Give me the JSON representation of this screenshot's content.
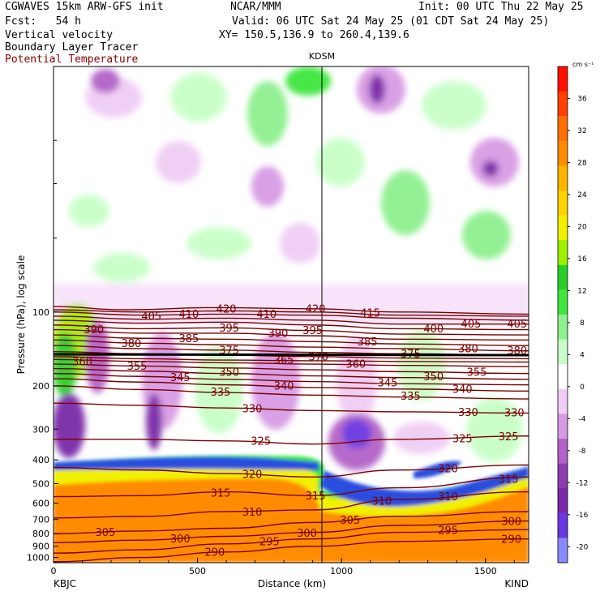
{
  "header": {
    "model": "CGWAVES 15km ARW-GFS init",
    "forecast": "Fcst:   54 h",
    "field1": "Vertical velocity",
    "field2": "Boundary Layer Tracer",
    "field3": "Potential Temperature",
    "center": "NCAR/MMM",
    "init": "Init: 00 UTC Thu 22 May 25",
    "valid": "Valid: 06 UTC Sat 24 May 25 (01 CDT Sat 24 May 25)",
    "xy": "XY= 150.5,136.9 to 260.4,139.6"
  },
  "colors": {
    "theta": "#7a0000",
    "shading_scale": [
      "#8a8aff",
      "#6a38e0",
      "#7a2aa8",
      "#8c3db0",
      "#b262c8",
      "#d79be4",
      "#f0cdf5",
      "#ffffff",
      "#c8ffc8",
      "#8ef08e",
      "#3ee63e",
      "#2ad02a",
      "#9cf000",
      "#f0f000",
      "#ffd200",
      "#ffb400",
      "#ff8c00",
      "#ff7000",
      "#ff4000",
      "#ff1000"
    ]
  },
  "chart_data": {
    "type": "heatmap",
    "title": "Vertical velocity, Boundary Layer Tracer, Potential Temperature",
    "xlabel": "Distance (km)",
    "ylabel": "Pressure (hPa), log scale",
    "x_ticks": [
      0,
      500,
      1000,
      1500
    ],
    "xlim": [
      0,
      1650
    ],
    "y_ticks": [
      100,
      200,
      300,
      400,
      500,
      600,
      700,
      800,
      900,
      1000
    ],
    "y_scale": "log",
    "ylim": [
      1050,
      10
    ],
    "x_endpoints": {
      "left": "KBJC",
      "right": "KIND"
    },
    "marker": {
      "label": "KDSM",
      "x": 940
    },
    "colorbar": {
      "unit": "cm s⁻¹",
      "tick_labels": [
        "36",
        "32",
        "28",
        "24",
        "20",
        "16",
        "12",
        "8",
        "4",
        "0",
        "-4",
        "-8",
        "-12",
        "-16",
        "-20"
      ],
      "levels": [
        -22,
        -20,
        -18,
        -16,
        -14,
        -12,
        -10,
        -8,
        -6,
        -4,
        -2,
        0,
        2,
        4,
        6,
        8,
        10,
        12,
        14,
        16,
        18,
        20,
        22,
        24,
        26,
        28,
        30,
        32,
        34,
        36,
        38,
        40
      ]
    },
    "theta_isentropes": [
      {
        "theta": 420,
        "points": [
          [
            0,
            95
          ],
          [
            250,
            98
          ],
          [
            550,
            96
          ],
          [
            900,
            97
          ],
          [
            1200,
            100
          ],
          [
            1650,
            102
          ]
        ]
      },
      {
        "theta": 415,
        "points": [
          [
            0,
            98
          ],
          [
            300,
            100
          ],
          [
            600,
            99
          ],
          [
            900,
            100
          ],
          [
            1200,
            103
          ],
          [
            1650,
            104
          ]
        ]
      },
      {
        "theta": 410,
        "points": [
          [
            0,
            100
          ],
          [
            300,
            103
          ],
          [
            600,
            102
          ],
          [
            900,
            103
          ],
          [
            1200,
            106
          ],
          [
            1650,
            108
          ]
        ]
      },
      {
        "theta": 405,
        "points": [
          [
            0,
            104
          ],
          [
            300,
            107
          ],
          [
            600,
            106
          ],
          [
            900,
            108
          ],
          [
            1200,
            112
          ],
          [
            1650,
            112
          ]
        ]
      },
      {
        "theta": 400,
        "points": [
          [
            0,
            108
          ],
          [
            300,
            111
          ],
          [
            600,
            110
          ],
          [
            900,
            113
          ],
          [
            1200,
            117
          ],
          [
            1650,
            118
          ]
        ]
      },
      {
        "theta": 395,
        "points": [
          [
            0,
            113
          ],
          [
            300,
            117
          ],
          [
            600,
            116
          ],
          [
            900,
            119
          ],
          [
            1200,
            123
          ],
          [
            1650,
            124
          ]
        ]
      },
      {
        "theta": 390,
        "points": [
          [
            0,
            118
          ],
          [
            300,
            122
          ],
          [
            600,
            122
          ],
          [
            900,
            125
          ],
          [
            1200,
            129
          ],
          [
            1650,
            130
          ]
        ]
      },
      {
        "theta": 385,
        "points": [
          [
            0,
            124
          ],
          [
            300,
            128
          ],
          [
            600,
            129
          ],
          [
            900,
            132
          ],
          [
            1200,
            135
          ],
          [
            1650,
            137
          ]
        ]
      },
      {
        "theta": 380,
        "points": [
          [
            0,
            130
          ],
          [
            300,
            134
          ],
          [
            600,
            136
          ],
          [
            900,
            139
          ],
          [
            1200,
            141
          ],
          [
            1650,
            144
          ]
        ]
      },
      {
        "theta": 375,
        "points": [
          [
            0,
            137
          ],
          [
            300,
            141
          ],
          [
            600,
            143
          ],
          [
            900,
            146
          ],
          [
            1200,
            148
          ],
          [
            1650,
            150
          ]
        ]
      },
      {
        "theta": 370,
        "points": [
          [
            0,
            145
          ],
          [
            300,
            148
          ],
          [
            600,
            150
          ],
          [
            900,
            152
          ],
          [
            1200,
            154
          ],
          [
            1650,
            155
          ]
        ]
      },
      {
        "theta": 365,
        "points": [
          [
            0,
            152
          ],
          [
            300,
            155
          ],
          [
            600,
            157
          ],
          [
            900,
            158
          ],
          [
            1200,
            159
          ],
          [
            1650,
            160
          ]
        ]
      },
      {
        "theta": 360,
        "points": [
          [
            0,
            156
          ],
          [
            300,
            159
          ],
          [
            600,
            161
          ],
          [
            900,
            163
          ],
          [
            1200,
            165
          ],
          [
            1650,
            167
          ]
        ]
      },
      {
        "theta": 355,
        "points": [
          [
            0,
            163
          ],
          [
            300,
            166
          ],
          [
            600,
            169
          ],
          [
            900,
            172
          ],
          [
            1200,
            175
          ],
          [
            1650,
            178
          ]
        ]
      },
      {
        "theta": 350,
        "points": [
          [
            0,
            170
          ],
          [
            300,
            174
          ],
          [
            600,
            178
          ],
          [
            900,
            182
          ],
          [
            1200,
            185
          ],
          [
            1650,
            188
          ]
        ]
      },
      {
        "theta": 345,
        "points": [
          [
            0,
            178
          ],
          [
            300,
            183
          ],
          [
            600,
            188
          ],
          [
            900,
            192
          ],
          [
            1200,
            196
          ],
          [
            1650,
            198
          ]
        ]
      },
      {
        "theta": 340,
        "points": [
          [
            0,
            187
          ],
          [
            300,
            193
          ],
          [
            600,
            198
          ],
          [
            900,
            203
          ],
          [
            1200,
            206
          ],
          [
            1650,
            210
          ]
        ]
      },
      {
        "theta": 335,
        "points": [
          [
            0,
            200
          ],
          [
            300,
            207
          ],
          [
            600,
            213
          ],
          [
            900,
            218
          ],
          [
            1200,
            222
          ],
          [
            1650,
            226
          ]
        ]
      },
      {
        "theta": 330,
        "points": [
          [
            0,
            235
          ],
          [
            300,
            240
          ],
          [
            600,
            246
          ],
          [
            900,
            252
          ],
          [
            1200,
            255
          ],
          [
            1650,
            258
          ]
        ]
      },
      {
        "theta": 325,
        "points": [
          [
            0,
            330
          ],
          [
            300,
            330
          ],
          [
            600,
            335
          ],
          [
            900,
            345
          ],
          [
            1200,
            330
          ],
          [
            1650,
            320
          ]
        ]
      },
      {
        "theta": 320,
        "points": [
          [
            0,
            430
          ],
          [
            300,
            440
          ],
          [
            600,
            455
          ],
          [
            900,
            470
          ],
          [
            1200,
            440
          ],
          [
            1650,
            420
          ]
        ]
      },
      {
        "theta": 315,
        "points": [
          [
            0,
            565
          ],
          [
            300,
            560
          ],
          [
            600,
            540
          ],
          [
            900,
            560
          ],
          [
            1200,
            520
          ],
          [
            1650,
            470
          ]
        ]
      },
      {
        "theta": 310,
        "points": [
          [
            0,
            690
          ],
          [
            300,
            680
          ],
          [
            600,
            650
          ],
          [
            900,
            640
          ],
          [
            1200,
            580
          ],
          [
            1650,
            540
          ]
        ]
      },
      {
        "theta": 305,
        "points": [
          [
            0,
            800
          ],
          [
            300,
            780
          ],
          [
            600,
            760
          ],
          [
            900,
            720
          ],
          [
            1200,
            680
          ],
          [
            1650,
            650
          ]
        ]
      },
      {
        "theta": 300,
        "points": [
          [
            0,
            870
          ],
          [
            300,
            850
          ],
          [
            600,
            820
          ],
          [
            900,
            790
          ],
          [
            1200,
            740
          ],
          [
            1650,
            710
          ]
        ]
      },
      {
        "theta": 295,
        "points": [
          [
            0,
            960
          ],
          [
            300,
            930
          ],
          [
            600,
            880
          ],
          [
            900,
            840
          ],
          [
            1200,
            790
          ],
          [
            1650,
            770
          ]
        ]
      },
      {
        "theta": 290,
        "points": [
          [
            0,
            1040
          ],
          [
            300,
            1000
          ],
          [
            600,
            950
          ],
          [
            900,
            900
          ],
          [
            1200,
            860
          ],
          [
            1650,
            840
          ]
        ]
      }
    ],
    "theta_labels": [
      {
        "theta": 420,
        "x": 600,
        "p": 97
      },
      {
        "theta": 420,
        "x": 910,
        "p": 97
      },
      {
        "theta": 415,
        "x": 1100,
        "p": 101
      },
      {
        "theta": 410,
        "x": 470,
        "p": 102
      },
      {
        "theta": 410,
        "x": 740,
        "p": 102
      },
      {
        "theta": 405,
        "x": 340,
        "p": 104
      },
      {
        "theta": 405,
        "x": 1450,
        "p": 112
      },
      {
        "theta": 405,
        "x": 1610,
        "p": 112
      },
      {
        "theta": 400,
        "x": 1320,
        "p": 117
      },
      {
        "theta": 395,
        "x": 610,
        "p": 116
      },
      {
        "theta": 395,
        "x": 900,
        "p": 119
      },
      {
        "theta": 390,
        "x": 140,
        "p": 118
      },
      {
        "theta": 390,
        "x": 780,
        "p": 122
      },
      {
        "theta": 385,
        "x": 470,
        "p": 128
      },
      {
        "theta": 385,
        "x": 1090,
        "p": 132
      },
      {
        "theta": 380,
        "x": 270,
        "p": 134
      },
      {
        "theta": 380,
        "x": 1440,
        "p": 141
      },
      {
        "theta": 380,
        "x": 1610,
        "p": 144
      },
      {
        "theta": 375,
        "x": 610,
        "p": 143
      },
      {
        "theta": 375,
        "x": 1240,
        "p": 148
      },
      {
        "theta": 370,
        "x": 920,
        "p": 152
      },
      {
        "theta": 365,
        "x": 800,
        "p": 157
      },
      {
        "theta": 360,
        "x": 100,
        "p": 159
      },
      {
        "theta": 360,
        "x": 1050,
        "p": 163
      },
      {
        "theta": 355,
        "x": 290,
        "p": 166
      },
      {
        "theta": 355,
        "x": 1470,
        "p": 176
      },
      {
        "theta": 350,
        "x": 610,
        "p": 176
      },
      {
        "theta": 350,
        "x": 1320,
        "p": 183
      },
      {
        "theta": 345,
        "x": 440,
        "p": 185
      },
      {
        "theta": 345,
        "x": 1160,
        "p": 194
      },
      {
        "theta": 340,
        "x": 800,
        "p": 200
      },
      {
        "theta": 340,
        "x": 1420,
        "p": 206
      },
      {
        "theta": 335,
        "x": 580,
        "p": 212
      },
      {
        "theta": 335,
        "x": 1240,
        "p": 220
      },
      {
        "theta": 330,
        "x": 690,
        "p": 248
      },
      {
        "theta": 330,
        "x": 1440,
        "p": 256
      },
      {
        "theta": 330,
        "x": 1600,
        "p": 257
      },
      {
        "theta": 325,
        "x": 720,
        "p": 336
      },
      {
        "theta": 325,
        "x": 1420,
        "p": 328
      },
      {
        "theta": 325,
        "x": 1580,
        "p": 322
      },
      {
        "theta": 320,
        "x": 690,
        "p": 458
      },
      {
        "theta": 320,
        "x": 1370,
        "p": 435
      },
      {
        "theta": 315,
        "x": 580,
        "p": 545
      },
      {
        "theta": 315,
        "x": 910,
        "p": 560
      },
      {
        "theta": 315,
        "x": 1580,
        "p": 480
      },
      {
        "theta": 310,
        "x": 690,
        "p": 652
      },
      {
        "theta": 310,
        "x": 1140,
        "p": 590
      },
      {
        "theta": 310,
        "x": 1370,
        "p": 565
      },
      {
        "theta": 305,
        "x": 180,
        "p": 790
      },
      {
        "theta": 305,
        "x": 1030,
        "p": 705
      },
      {
        "theta": 300,
        "x": 440,
        "p": 840
      },
      {
        "theta": 300,
        "x": 880,
        "p": 795
      },
      {
        "theta": 300,
        "x": 1590,
        "p": 712
      },
      {
        "theta": 295,
        "x": 750,
        "p": 860
      },
      {
        "theta": 295,
        "x": 1370,
        "p": 775
      },
      {
        "theta": 290,
        "x": 560,
        "p": 950
      },
      {
        "theta": 290,
        "x": 1590,
        "p": 842
      }
    ]
  }
}
